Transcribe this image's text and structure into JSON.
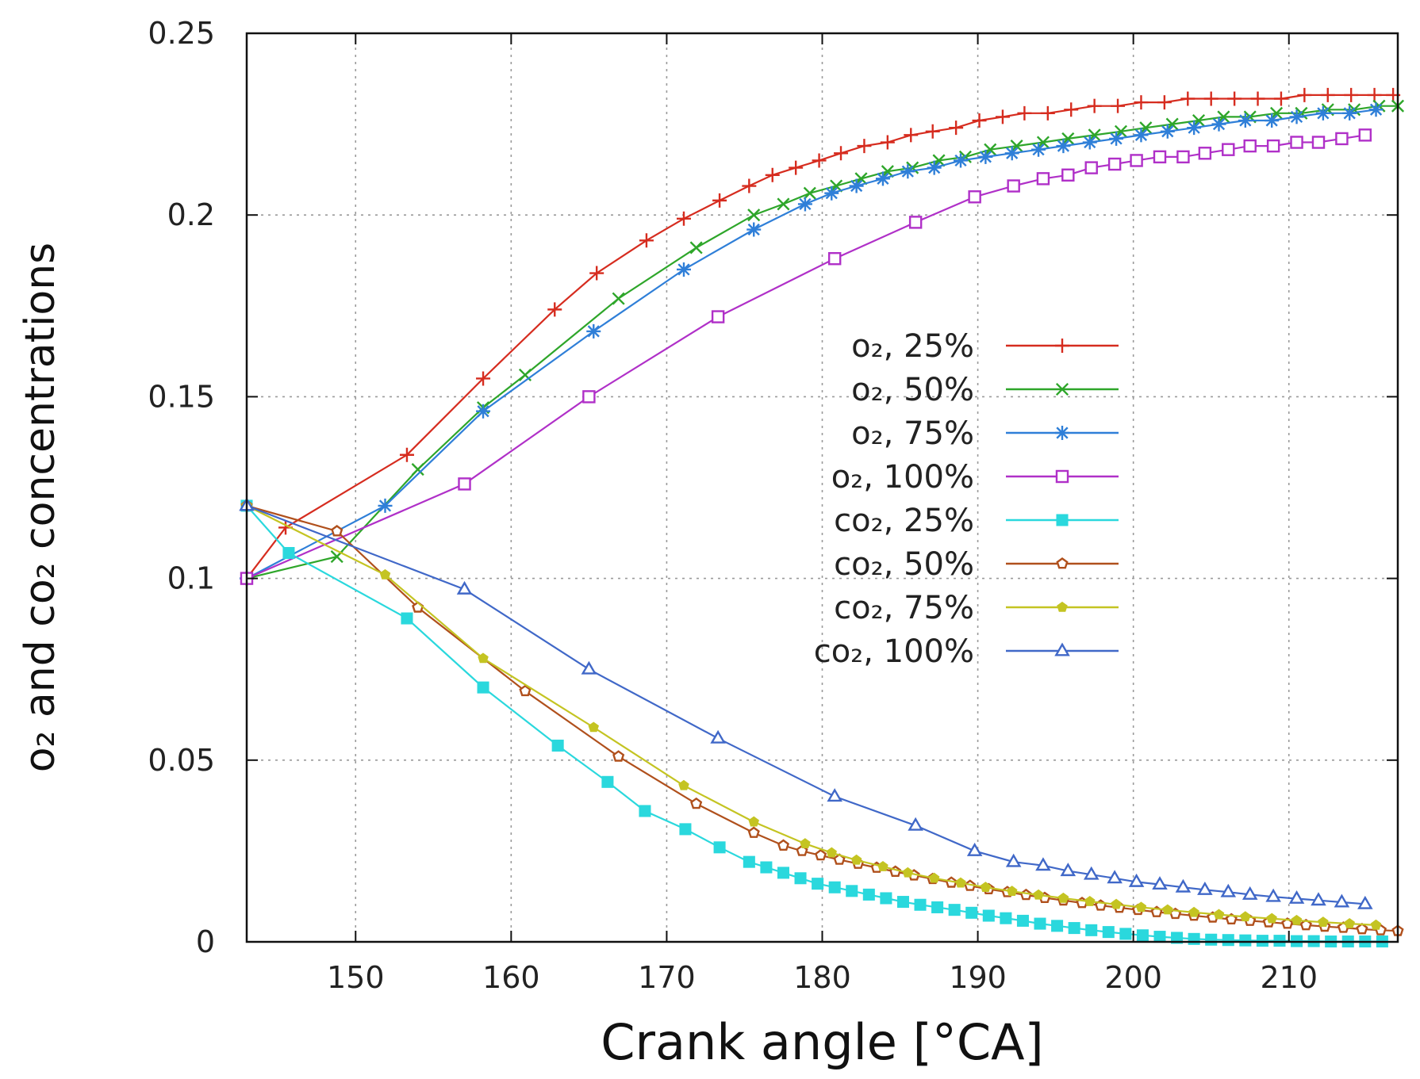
{
  "chart_data": {
    "type": "line",
    "title": "",
    "xlabel": "Crank angle [°CA]",
    "ylabel": "o₂ and co₂ concentrations",
    "xlim": [
      143,
      217
    ],
    "ylim": [
      0,
      0.25
    ],
    "xticks": [
      150,
      160,
      170,
      180,
      190,
      200,
      210
    ],
    "yticks": [
      0,
      0.05,
      0.1,
      0.15,
      0.2,
      0.25
    ],
    "ytick_labels": [
      "0",
      "0.05",
      "0.1",
      "0.15",
      "0.2",
      "0.25"
    ],
    "grid": true,
    "legend_position": "center-right",
    "series": [
      {
        "name": "o₂, 25%",
        "color": "#d62c1f",
        "marker": "plus",
        "x": [
          143,
          145.5,
          153.3,
          158.2,
          162.8,
          165.5,
          168.7,
          171.1,
          173.4,
          175.3,
          176.8,
          178.3,
          179.8,
          181.2,
          182.7,
          184.2,
          185.7,
          187.1,
          188.6,
          190.1,
          191.6,
          193.0,
          194.5,
          196.0,
          197.5,
          199.0,
          200.5,
          202.0,
          203.5,
          205.0,
          206.5,
          208.0,
          209.5,
          211.0,
          212.5,
          214.0,
          215.5,
          216.7
        ],
        "y": [
          0.1,
          0.114,
          0.134,
          0.155,
          0.174,
          0.184,
          0.193,
          0.199,
          0.204,
          0.208,
          0.211,
          0.213,
          0.215,
          0.217,
          0.219,
          0.22,
          0.222,
          0.223,
          0.224,
          0.226,
          0.227,
          0.228,
          0.228,
          0.229,
          0.23,
          0.23,
          0.231,
          0.231,
          0.232,
          0.232,
          0.232,
          0.232,
          0.232,
          0.233,
          0.233,
          0.233,
          0.233,
          0.233
        ]
      },
      {
        "name": "o₂, 50%",
        "color": "#2ea62a",
        "marker": "cross",
        "x": [
          143,
          148.8,
          154,
          158.2,
          160.9,
          166.9,
          171.9,
          175.6,
          177.5,
          179.2,
          180.9,
          182.5,
          184.2,
          185.8,
          187.5,
          189.2,
          190.8,
          192.5,
          194.2,
          195.8,
          197.5,
          199.2,
          200.8,
          202.5,
          204.2,
          205.8,
          207.5,
          209.2,
          210.8,
          212.5,
          214.2,
          215.8,
          217
        ],
        "y": [
          0.1,
          0.106,
          0.13,
          0.147,
          0.156,
          0.177,
          0.191,
          0.2,
          0.203,
          0.206,
          0.208,
          0.21,
          0.212,
          0.213,
          0.215,
          0.216,
          0.218,
          0.219,
          0.22,
          0.221,
          0.222,
          0.223,
          0.224,
          0.225,
          0.226,
          0.227,
          0.227,
          0.228,
          0.228,
          0.229,
          0.229,
          0.23,
          0.23
        ]
      },
      {
        "name": "o₂, 75%",
        "color": "#2f7fd8",
        "marker": "star",
        "x": [
          143,
          151.9,
          158.2,
          165.3,
          171.1,
          175.6,
          178.9,
          180.6,
          182.2,
          183.9,
          185.5,
          187.2,
          188.9,
          190.5,
          192.2,
          193.9,
          195.5,
          197.2,
          198.9,
          200.5,
          202.2,
          203.9,
          205.5,
          207.2,
          208.9,
          210.5,
          212.2,
          213.9,
          215.6
        ],
        "y": [
          0.1,
          0.12,
          0.146,
          0.168,
          0.185,
          0.196,
          0.203,
          0.206,
          0.208,
          0.21,
          0.212,
          0.213,
          0.215,
          0.216,
          0.217,
          0.218,
          0.219,
          0.22,
          0.221,
          0.222,
          0.223,
          0.224,
          0.225,
          0.226,
          0.226,
          0.227,
          0.228,
          0.228,
          0.229
        ]
      },
      {
        "name": "o₂, 100%",
        "color": "#b030c8",
        "marker": "square",
        "x": [
          143,
          157,
          165,
          173.3,
          180.8,
          186,
          189.8,
          192.3,
          194.2,
          195.8,
          197.3,
          198.8,
          200.2,
          201.7,
          203.2,
          204.6,
          206.1,
          207.5,
          209,
          210.5,
          211.9,
          213.4,
          214.9
        ],
        "y": [
          0.1,
          0.126,
          0.15,
          0.172,
          0.188,
          0.198,
          0.205,
          0.208,
          0.21,
          0.211,
          0.213,
          0.214,
          0.215,
          0.216,
          0.216,
          0.217,
          0.218,
          0.219,
          0.219,
          0.22,
          0.22,
          0.221,
          0.222
        ]
      },
      {
        "name": "co₂, 25%",
        "color": "#2ad8dd",
        "marker": "filled-square",
        "x": [
          143,
          145.7,
          153.3,
          158.2,
          163,
          166.2,
          168.6,
          171.2,
          173.4,
          175.3,
          176.4,
          177.5,
          178.6,
          179.7,
          180.8,
          181.9,
          183.0,
          184.1,
          185.2,
          186.3,
          187.4,
          188.5,
          189.6,
          190.7,
          191.8,
          192.9,
          194.0,
          195.1,
          196.2,
          197.3,
          198.4,
          199.5,
          200.6,
          201.7,
          202.8,
          203.9,
          205.0,
          206.1,
          207.2,
          208.3,
          209.4,
          210.5,
          211.6,
          212.7,
          213.8,
          214.9,
          216.0
        ],
        "y": [
          0.12,
          0.107,
          0.089,
          0.07,
          0.054,
          0.044,
          0.036,
          0.031,
          0.026,
          0.022,
          0.0205,
          0.019,
          0.0175,
          0.016,
          0.015,
          0.014,
          0.013,
          0.012,
          0.011,
          0.0102,
          0.0095,
          0.0088,
          0.008,
          0.0072,
          0.0065,
          0.0058,
          0.005,
          0.0044,
          0.0038,
          0.0032,
          0.0027,
          0.0022,
          0.0018,
          0.0014,
          0.0011,
          0.0008,
          0.0006,
          0.0005,
          0.0004,
          0.0003,
          0.0003,
          0.0002,
          0.0002,
          0.0001,
          0.0001,
          0.0001,
          0.0001
        ]
      },
      {
        "name": "co₂, 50%",
        "color": "#b0501c",
        "marker": "pentagon",
        "x": [
          143,
          148.8,
          154,
          160.9,
          166.9,
          171.9,
          175.6,
          177.5,
          178.7,
          179.9,
          181.1,
          182.3,
          183.5,
          184.7,
          185.9,
          187.1,
          188.3,
          189.5,
          190.7,
          191.9,
          193.1,
          194.3,
          195.5,
          196.7,
          197.9,
          199.1,
          200.3,
          201.5,
          202.7,
          203.9,
          205.1,
          206.3,
          207.5,
          208.7,
          209.9,
          211.1,
          212.3,
          213.5,
          214.7,
          215.9,
          217
        ],
        "y": [
          0.12,
          0.113,
          0.092,
          0.069,
          0.051,
          0.038,
          0.03,
          0.0265,
          0.025,
          0.0238,
          0.0226,
          0.0215,
          0.0204,
          0.0193,
          0.0183,
          0.0173,
          0.0163,
          0.0154,
          0.0145,
          0.0137,
          0.0129,
          0.0121,
          0.0114,
          0.0107,
          0.01,
          0.0094,
          0.0088,
          0.0082,
          0.0077,
          0.0072,
          0.0067,
          0.0062,
          0.0058,
          0.0054,
          0.005,
          0.0046,
          0.0042,
          0.0039,
          0.0035,
          0.0032,
          0.003
        ]
      },
      {
        "name": "co₂, 75%",
        "color": "#c4c422",
        "marker": "filled-pentagon",
        "x": [
          143,
          151.9,
          158.2,
          165.3,
          171.1,
          175.6,
          178.9,
          180.6,
          182.2,
          183.9,
          185.5,
          187.2,
          188.9,
          190.5,
          192.2,
          193.9,
          195.5,
          197.2,
          198.9,
          200.5,
          202.2,
          203.9,
          205.5,
          207.2,
          208.9,
          210.5,
          212.2,
          213.9,
          215.6
        ],
        "y": [
          0.12,
          0.101,
          0.078,
          0.059,
          0.043,
          0.033,
          0.027,
          0.0245,
          0.0225,
          0.0207,
          0.019,
          0.0175,
          0.0162,
          0.015,
          0.0139,
          0.0129,
          0.012,
          0.0111,
          0.0103,
          0.0095,
          0.0088,
          0.0081,
          0.0075,
          0.0069,
          0.0064,
          0.0059,
          0.0054,
          0.005,
          0.0046
        ]
      },
      {
        "name": "co₂, 100%",
        "color": "#4068c8",
        "marker": "triangle",
        "x": [
          143,
          157,
          165,
          173.3,
          180.8,
          186,
          189.8,
          192.3,
          194.2,
          195.8,
          197.3,
          198.8,
          200.2,
          201.7,
          203.2,
          204.6,
          206.1,
          207.5,
          209,
          210.5,
          211.9,
          213.4,
          214.9
        ],
        "y": [
          0.12,
          0.097,
          0.075,
          0.056,
          0.04,
          0.032,
          0.025,
          0.022,
          0.021,
          0.0195,
          0.0185,
          0.0175,
          0.0165,
          0.0158,
          0.015,
          0.0143,
          0.0137,
          0.013,
          0.0124,
          0.0119,
          0.0114,
          0.0109,
          0.0104
        ]
      }
    ]
  }
}
